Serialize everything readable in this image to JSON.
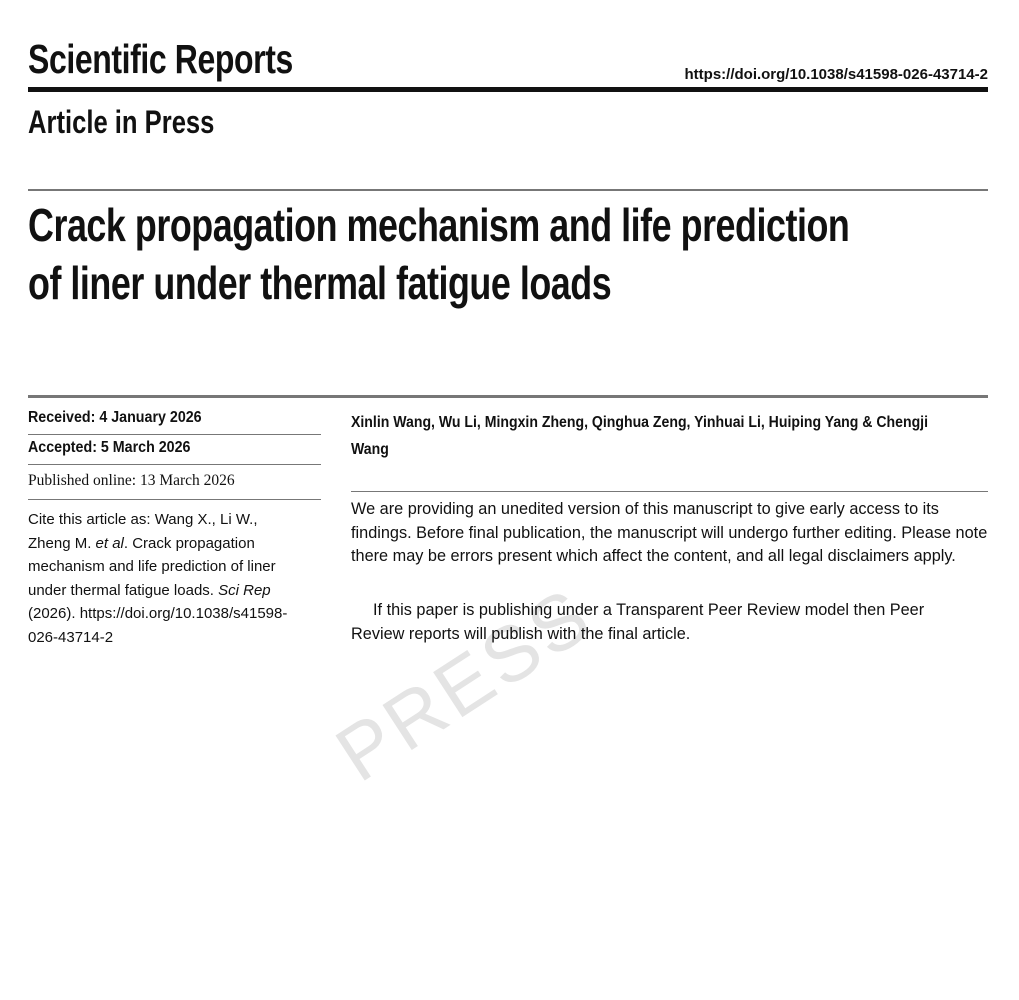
{
  "header": {
    "journal": "Scientific Reports",
    "doi": "https://doi.org/10.1038/s41598-026-43714-2",
    "status": "Article in Press"
  },
  "article": {
    "title_lines": [
      "Crack propagation mechanism and life prediction",
      "of liner under thermal fatigue loads"
    ],
    "authors": "Xinlin Wang, Wu Li, Mingxin Zheng, Qinghua Zeng, Yinhuai Li, Huiping Yang & Chengji Wang"
  },
  "dates": {
    "received": "Received: 4 January 2026",
    "accepted": "Accepted: 5 March 2026",
    "published": "Published online: 13 March 2026"
  },
  "cite": {
    "prefix": "Cite this article as: Wang X., Li W., Zheng M. ",
    "etal": "et al",
    "middle": ". Crack propagation mechanism and life prediction of liner under thermal fatigue loads. ",
    "journal": "Sci Rep",
    "suffix": " (2026). https://doi.org/10.1038/s41598-026-43714-2"
  },
  "notice": {
    "paragraphs": [
      "We are providing an unedited version of this manuscript to give early access to its findings. Before final publication, the manuscript will undergo further editing. Please note there may be errors present which affect the content, and all legal disclaimers apply.",
      "If this paper is publishing under a Transparent Peer Review model then Peer Review reports will publish with the final article."
    ]
  },
  "watermark": "PRESS"
}
